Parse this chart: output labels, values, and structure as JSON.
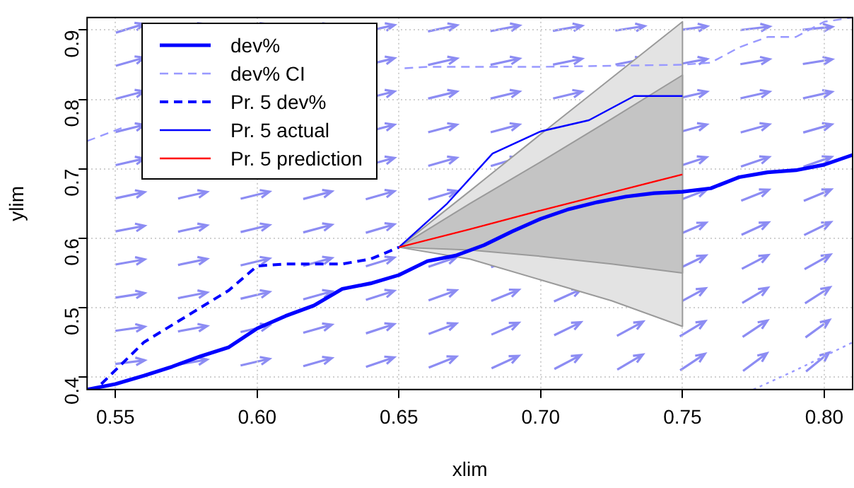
{
  "chart_data": {
    "type": "line",
    "xlabel": "xlim",
    "ylabel": "ylim",
    "xlim": [
      0.54,
      0.81
    ],
    "ylim": [
      0.382,
      0.918
    ],
    "xticks": [
      0.55,
      {
        "value": 0.6,
        "label": "0.60"
      },
      0.65,
      {
        "value": 0.7,
        "label": "0.70"
      },
      0.75,
      {
        "value": 0.8,
        "label": "0.80"
      }
    ],
    "yticks": [
      0.4,
      0.5,
      0.6,
      0.7,
      0.8,
      0.9
    ],
    "grid": true,
    "legend": "top left",
    "series": [
      {
        "color": "#e3e3e3",
        "line_style": "solid",
        "x": [
          0.65,
          0.675,
          0.7,
          0.725,
          0.75
        ],
        "values": [
          0.587,
          0.613,
          0.64,
          0.666,
          0.692
        ],
        "lower": [
          0.587,
          0.57,
          0.54,
          0.51,
          0.473
        ],
        "upper": [
          0.587,
          0.668,
          0.75,
          0.831,
          0.912
        ]
      },
      {
        "name": "dev%",
        "color": "#0000ff",
        "line_style": "solid",
        "x": [
          0.54,
          0.55,
          0.56,
          0.57,
          0.58,
          0.59,
          0.6,
          0.61,
          0.62,
          0.63,
          0.64,
          0.65,
          0.66,
          0.67,
          0.68,
          0.69,
          0.7,
          0.71,
          0.72,
          0.73,
          0.74,
          0.75,
          0.76,
          0.77,
          0.78,
          0.79,
          0.8,
          0.81
        ],
        "values": [
          0.382,
          0.39,
          0.402,
          0.415,
          0.43,
          0.443,
          0.47,
          0.488,
          0.503,
          0.527,
          0.535,
          0.547,
          0.567,
          0.575,
          0.59,
          0.61,
          0.628,
          0.642,
          0.652,
          0.66,
          0.665,
          0.667,
          0.672,
          0.688,
          0.695,
          0.698,
          0.706,
          0.72
        ]
      },
      {
        "name": "dev% CI",
        "color": "#9999ff",
        "line_style": "dashed",
        "x": [
          0.54,
          0.553,
          0.58,
          0.6,
          0.63,
          0.652,
          0.66,
          0.7,
          0.75,
          0.76,
          0.77,
          0.78,
          0.79,
          0.8,
          0.81
        ],
        "values": [
          0.74,
          0.76,
          null,
          null,
          null,
          0.845,
          0.847,
          0.847,
          0.85,
          0.853,
          0.875,
          0.89,
          0.89,
          0.912,
          0.918
        ]
      },
      {
        "color": "#9999ff",
        "line_style": "dotted",
        "x": [
          0.775,
          0.79,
          0.8,
          0.81
        ],
        "values": [
          0.382,
          0.41,
          0.43,
          0.45
        ]
      },
      {
        "name": "Pr. 5 dev%",
        "color": "#0000ff",
        "line_style": "dashed",
        "x": [
          0.545,
          0.56,
          0.58,
          0.59,
          0.6,
          0.61,
          0.63,
          0.64,
          0.65
        ],
        "values": [
          0.39,
          0.45,
          0.5,
          0.525,
          0.56,
          0.563,
          0.563,
          0.57,
          0.587
        ]
      },
      {
        "name": "Pr. 5 actual",
        "color": "#0000ff",
        "line_style": "solid",
        "x": [
          0.65,
          0.667,
          0.683,
          0.7,
          0.717,
          0.733,
          0.75
        ],
        "values": [
          0.587,
          0.65,
          0.722,
          0.754,
          0.77,
          0.805,
          0.805
        ]
      },
      {
        "name": "Pr. 5 prediction",
        "color": "#ff0000",
        "line_style": "solid",
        "x": [
          0.65,
          0.675,
          0.7,
          0.725,
          0.75
        ],
        "values": [
          0.587,
          0.613,
          0.64,
          0.666,
          0.692
        ],
        "lower": [
          0.587,
          0.583,
          0.574,
          0.563,
          0.55
        ],
        "upper": [
          0.587,
          0.65,
          0.71,
          0.772,
          0.835
        ]
      }
    ]
  }
}
